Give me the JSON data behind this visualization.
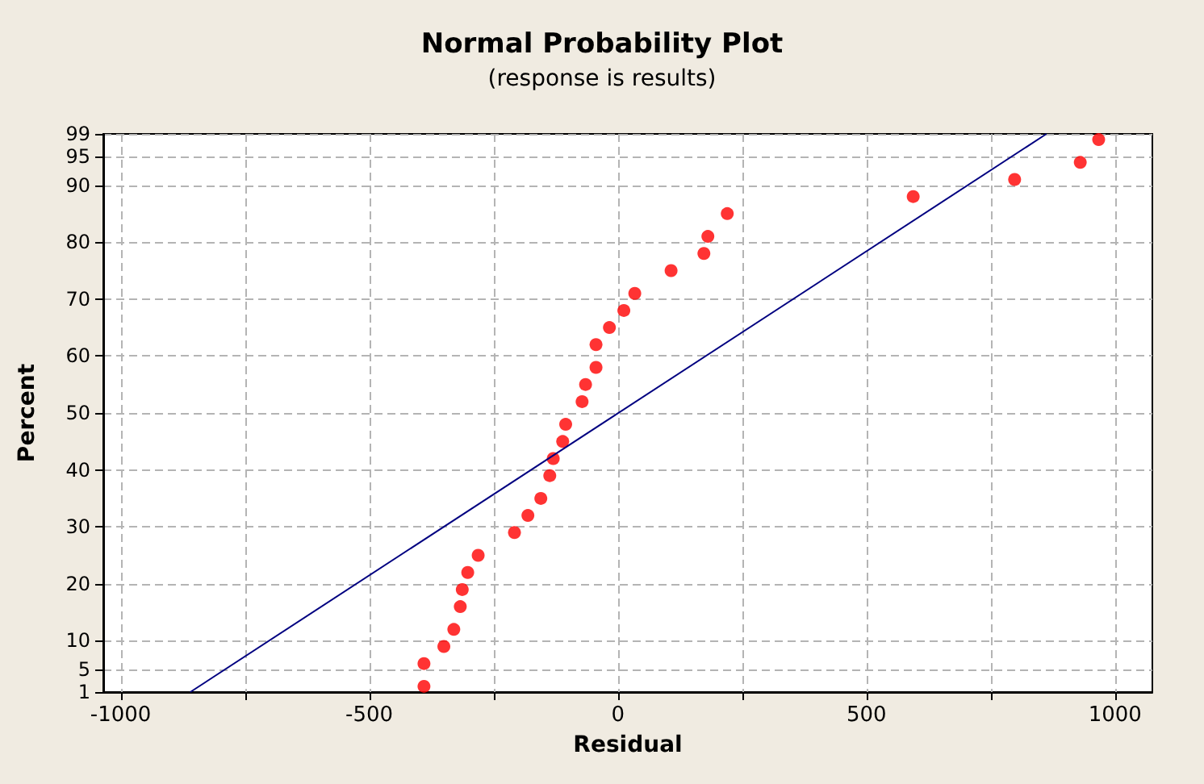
{
  "chart_data": {
    "type": "scatter",
    "title": "Normal Probability Plot",
    "subtitle": "(response is results)",
    "xlabel": "Residual",
    "ylabel": "Percent",
    "xlim": [
      -1035,
      1075
    ],
    "xticks": [
      -1000,
      {
        "value": -750,
        "label": null
      },
      -500,
      {
        "value": -250,
        "label": null
      },
      0,
      {
        "value": 250,
        "label": null
      },
      500,
      {
        "value": 750,
        "label": null
      },
      1000
    ],
    "ylim": [
      1,
      99
    ],
    "yticks": [
      1,
      5,
      10,
      20,
      30,
      40,
      50,
      60,
      70,
      80,
      90,
      95,
      99
    ],
    "grid": true,
    "marker": "circle",
    "series": [
      {
        "color": "#ff0000",
        "x": [
          -390,
          -390,
          -350,
          -330,
          -317,
          -313,
          -302,
          -281,
          -208,
          -181,
          -155,
          -137,
          -130,
          -111,
          -105,
          -72,
          -65,
          -44,
          -44,
          -17,
          12,
          34,
          107,
          173,
          181,
          220,
          594,
          798,
          930,
          967
        ],
        "values": [
          2,
          6,
          9,
          12,
          16,
          19,
          22,
          25,
          29,
          32,
          35,
          39,
          42,
          45,
          48,
          52,
          55,
          58,
          62,
          65,
          68,
          71,
          75,
          78,
          81,
          85,
          88,
          91,
          94,
          98
        ]
      },
      {
        "type": "line",
        "marker": "none",
        "color": "#000080",
        "x": [
          -860,
          862
        ],
        "values": [
          1,
          99
        ]
      }
    ]
  }
}
